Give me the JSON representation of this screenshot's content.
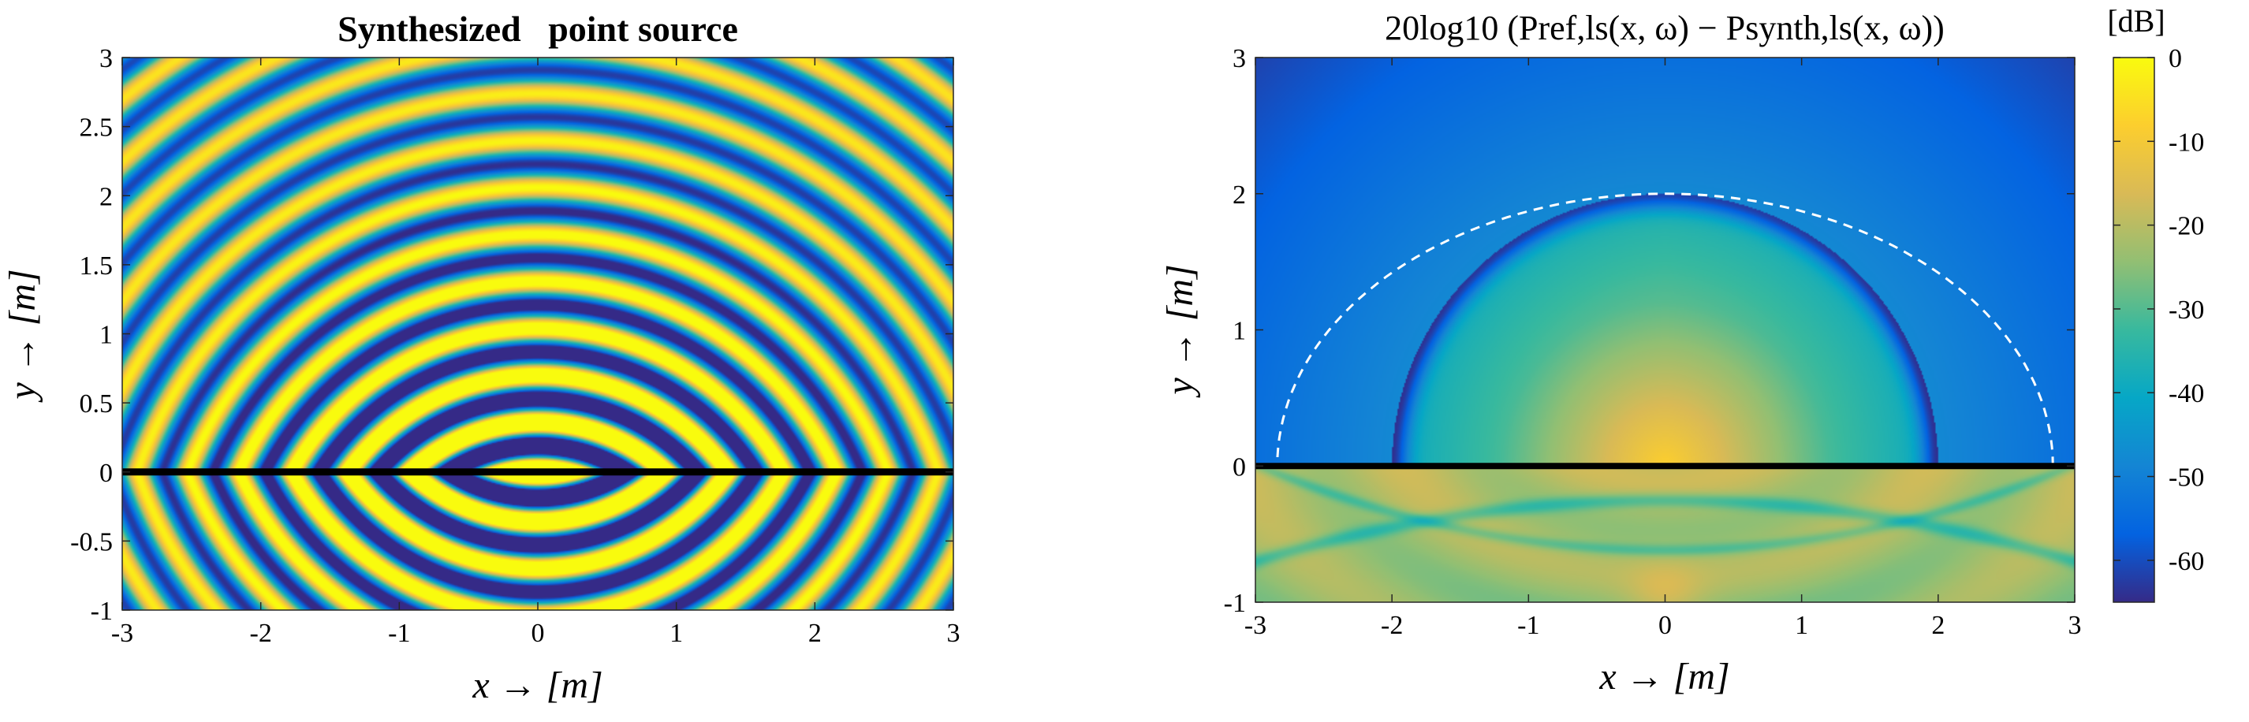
{
  "chart_data": [
    {
      "type": "heatmap",
      "title": "Synthesized   point source",
      "xlabel": "x → [m]",
      "ylabel": "y → [m]",
      "xlim": [
        -3,
        3
      ],
      "ylim": [
        -1,
        3
      ],
      "xticks": [
        -3,
        -2,
        -1,
        0,
        1,
        2,
        3
      ],
      "yticks": [
        -1,
        -0.5,
        0,
        0.5,
        1,
        1.5,
        2,
        2.5,
        3
      ],
      "xtick_labels": [
        "-3",
        "-2",
        "-1",
        "0",
        "1",
        "2",
        "3"
      ],
      "ytick_labels": [
        "-1",
        "-0.5",
        "0",
        "0.5",
        "1",
        "1.5",
        "2",
        "2.5",
        "3"
      ],
      "colormap": "parula",
      "loudspeaker_line": {
        "x": [
          -3,
          3
        ],
        "y": [
          0,
          0
        ],
        "color": "#000000"
      }
    },
    {
      "type": "heatmap",
      "title": "20log10 (Pref,ls(x, ω) − Psynth,ls(x, ω))",
      "xlabel": "x → [m]",
      "ylabel": "y → [m]",
      "xlim": [
        -3,
        3
      ],
      "ylim": [
        -1,
        3
      ],
      "xticks": [
        -3,
        -2,
        -1,
        0,
        1,
        2,
        3
      ],
      "yticks": [
        -1,
        0,
        1,
        2,
        3
      ],
      "xtick_labels": [
        "-3",
        "-2",
        "-1",
        "0",
        "1",
        "2",
        "3"
      ],
      "ytick_labels": [
        "-1",
        "0",
        "1",
        "2",
        "3"
      ],
      "colormap": "parula",
      "colorbar": {
        "label": "[dB]",
        "range": [
          -65,
          0
        ],
        "ticks": [
          0,
          -10,
          -20,
          -30,
          -40,
          -50,
          -60
        ],
        "tick_labels": [
          "0",
          "-10",
          "-20",
          "-30",
          "-40",
          "-50",
          "-60"
        ]
      },
      "loudspeaker_line": {
        "x": [
          -3,
          3
        ],
        "y": [
          0,
          0
        ],
        "color": "#000000"
      },
      "reference_arc": {
        "center": [
          0,
          0
        ],
        "radius": 2,
        "style": "dashed",
        "color": "#ffffff"
      }
    }
  ]
}
